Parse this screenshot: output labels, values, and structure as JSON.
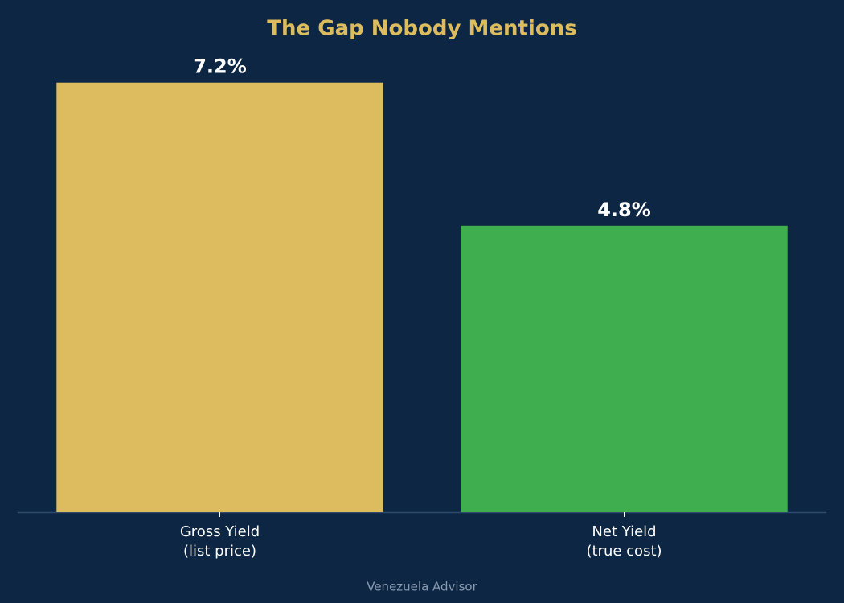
{
  "chart_data": {
    "type": "bar",
    "title": "The Gap Nobody Mentions",
    "categories": [
      "Gross Yield\n(list price)",
      "Net Yield\n(true cost)"
    ],
    "values": [
      7.2,
      4.8
    ],
    "value_labels": [
      "7.2%",
      "4.8%"
    ],
    "colors": [
      "#ddbc5f",
      "#3fae4f"
    ],
    "ylim": [
      0,
      7.56
    ],
    "grid": false,
    "source": "Venezuela Advisor"
  }
}
